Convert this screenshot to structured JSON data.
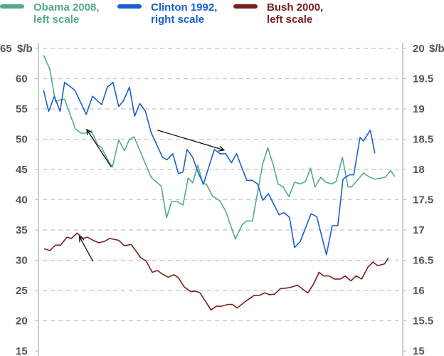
{
  "chart_data": {
    "type": "line",
    "title": "",
    "xlabel": "",
    "left_axis": {
      "unit": "$/b",
      "ticks": [
        65,
        60,
        55,
        50,
        45,
        40,
        35,
        30,
        25,
        20,
        15
      ],
      "ylim": [
        15,
        65
      ]
    },
    "right_axis": {
      "unit": "$/b",
      "ticks": [
        20,
        19.5,
        19,
        18.5,
        18,
        17.5,
        17,
        16.5,
        16,
        15.5,
        15
      ],
      "ylim": [
        15,
        20
      ]
    },
    "xlim": [
      0,
      64
    ],
    "grid": true,
    "legend_placement": "top",
    "series": [
      {
        "name": "Obama 2008,",
        "name2": "left scale",
        "axis": "left",
        "color": "#55aa8c",
        "x": [
          0.9,
          2.0,
          3.0,
          3.8,
          4.6,
          6.5,
          7.5,
          8.5,
          9.3,
          10.4,
          11.1,
          12.4,
          13.0,
          14.1,
          15.1,
          15.9,
          16.8,
          19.8,
          21.6,
          22.5,
          23.4,
          24.4,
          25.4,
          26.3,
          27.1,
          28.0,
          28.9,
          29.5,
          30.6,
          31.9,
          32.9,
          34.6,
          35.8,
          36.6,
          37.6,
          39.4,
          40.3,
          41.3,
          42.1,
          43.0,
          44.0,
          45.0,
          46.0,
          46.9,
          47.8,
          48.6,
          49.6,
          50.5,
          51.5,
          52.3,
          53.4,
          54.4,
          55.0,
          57.1,
          58.1,
          59.1,
          60.9,
          61.9,
          62.6
        ],
        "y": [
          63.9,
          61.6,
          56.2,
          56.5,
          56.6,
          51.7,
          51.0,
          51.0,
          51.4,
          49.1,
          48.6,
          46.2,
          45.4,
          49.9,
          48.1,
          49.8,
          50.4,
          43.7,
          42.2,
          37.0,
          39.7,
          39.7,
          39.1,
          43.6,
          42.8,
          45.7,
          42.6,
          42.6,
          40.6,
          39.8,
          38.1,
          33.5,
          35.9,
          36.5,
          36.5,
          45.9,
          48.6,
          45.6,
          42.6,
          42.1,
          40.5,
          42.9,
          42.6,
          43.0,
          45.2,
          42.1,
          43.7,
          42.9,
          42.6,
          43.0,
          47.0,
          42.1,
          42.1,
          44.4,
          43.8,
          43.4,
          43.7,
          44.8,
          43.8
        ]
      },
      {
        "name": "Clinton 1992,",
        "name2": "right scale",
        "axis": "right",
        "color": "#1a5fd0",
        "x": [
          0.9,
          1.8,
          2.8,
          3.8,
          4.6,
          6.4,
          8.4,
          9.5,
          11.1,
          12.1,
          13.1,
          14.1,
          14.9,
          16.0,
          16.9,
          17.8,
          18.8,
          19.8,
          21.8,
          22.6,
          23.6,
          24.6,
          25.4,
          26.1,
          27.1,
          28.1,
          29.0,
          30.9,
          31.9,
          32.9,
          33.9,
          34.8,
          36.6,
          37.6,
          38.5,
          39.4,
          40.4,
          42.3,
          43.1,
          44.1,
          45.0,
          46.0,
          47.9,
          48.9,
          50.6,
          51.6,
          52.6,
          53.5,
          54.6,
          55.4,
          56.5,
          57.1,
          58.3,
          59.1
        ],
        "y": [
          19.31,
          18.96,
          19.21,
          18.96,
          19.44,
          19.31,
          18.91,
          19.21,
          19.07,
          19.36,
          19.44,
          19.04,
          19.13,
          19.36,
          18.88,
          19.09,
          18.96,
          18.61,
          18.2,
          18.16,
          18.26,
          17.93,
          17.96,
          18.33,
          18.2,
          17.94,
          17.76,
          18.33,
          18.26,
          18.26,
          18.11,
          18.26,
          17.82,
          17.82,
          17.76,
          17.49,
          17.6,
          17.25,
          17.29,
          17.21,
          16.71,
          16.81,
          17.27,
          17.22,
          16.59,
          17.07,
          17.07,
          17.84,
          17.91,
          17.91,
          18.53,
          18.47,
          18.65,
          18.27
        ]
      },
      {
        "name": "Bush 2000,",
        "name2": "left scale",
        "axis": "left",
        "color": "#7a1f1f",
        "x": [
          1.0,
          2.0,
          3.0,
          3.9,
          5.0,
          5.8,
          6.8,
          7.8,
          8.6,
          9.6,
          10.6,
          11.6,
          12.5,
          14.1,
          15.1,
          16.3,
          18.0,
          18.9,
          20.0,
          20.9,
          21.8,
          22.8,
          23.8,
          24.6,
          25.6,
          26.8,
          27.6,
          28.4,
          30.3,
          31.3,
          32.1,
          33.3,
          34.1,
          34.9,
          36.1,
          37.9,
          38.8,
          39.8,
          40.6,
          41.5,
          42.5,
          43.6,
          44.6,
          45.5,
          47.3,
          48.3,
          49.3,
          50.1,
          51.1,
          52.0,
          53.0,
          53.9,
          54.9,
          55.8,
          56.8,
          57.9,
          58.8,
          59.6,
          60.8,
          61.5
        ],
        "y": [
          31.9,
          31.6,
          32.5,
          32.5,
          33.8,
          33.6,
          34.5,
          33.6,
          33.8,
          33.3,
          32.9,
          33.1,
          33.6,
          33.3,
          32.4,
          32.6,
          30.4,
          29.9,
          28.0,
          28.3,
          27.7,
          27.2,
          27.6,
          27.1,
          25.6,
          24.8,
          24.9,
          24.6,
          21.8,
          22.4,
          22.4,
          22.7,
          22.7,
          22.1,
          23.0,
          24.2,
          24.2,
          24.6,
          24.3,
          24.4,
          25.3,
          25.4,
          25.6,
          25.9,
          24.6,
          26.0,
          28.0,
          27.4,
          27.4,
          26.9,
          26.9,
          27.4,
          26.6,
          27.4,
          26.9,
          28.9,
          29.7,
          29.1,
          29.4,
          30.4
        ]
      }
    ],
    "annotations": [
      {
        "type": "arrow",
        "axis": "left",
        "from": [
          12.8,
          45.4
        ],
        "to": [
          8.5,
          51.6
        ]
      },
      {
        "type": "arrow",
        "axis": "left",
        "from": [
          20.9,
          51.5
        ],
        "to": [
          32.6,
          48.2
        ]
      },
      {
        "type": "arrow",
        "axis": "left",
        "from": [
          9.6,
          29.8
        ],
        "to": [
          7.2,
          33.9
        ]
      }
    ]
  }
}
